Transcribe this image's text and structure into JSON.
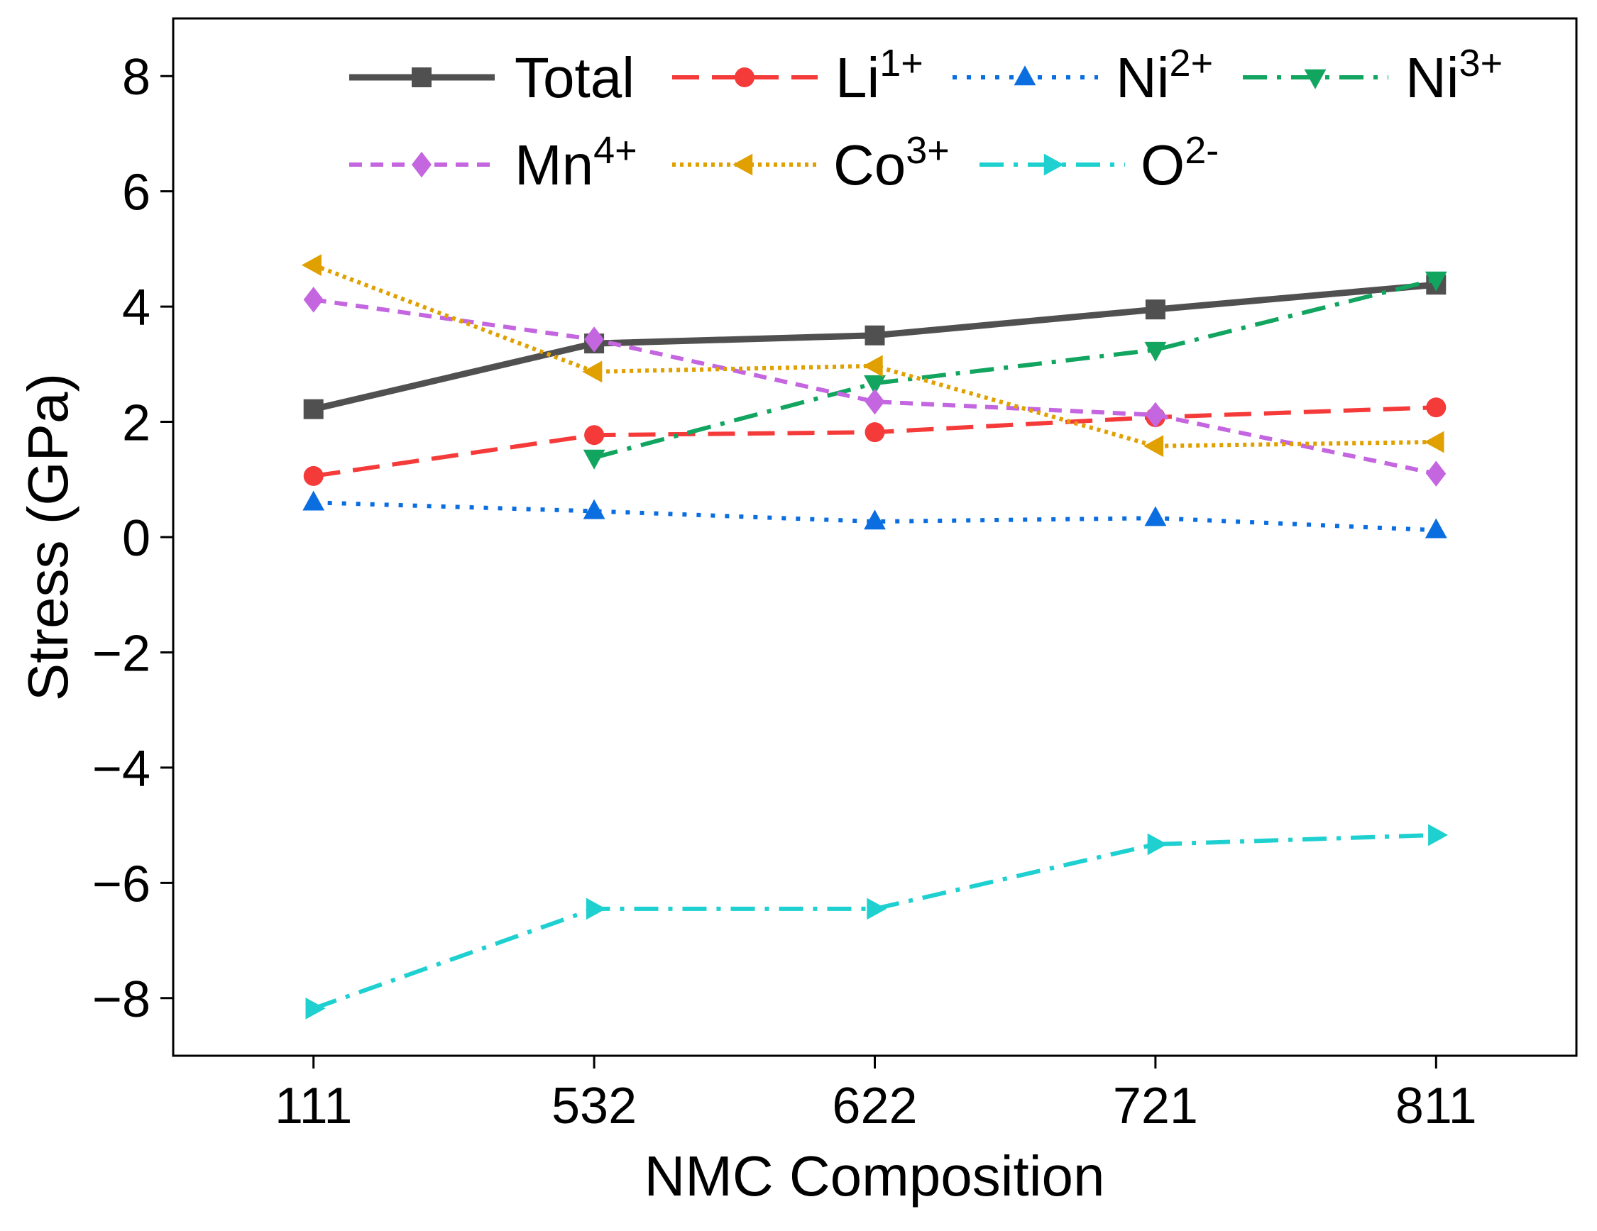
{
  "chart_data": {
    "type": "line",
    "title": "",
    "xlabel": "NMC Composition",
    "ylabel": "Stress (GPa)",
    "categories": [
      "111",
      "532",
      "622",
      "721",
      "811"
    ],
    "ylim": [
      -9,
      9
    ],
    "yticks": [
      -8,
      -6,
      -4,
      -2,
      0,
      2,
      4,
      6,
      8
    ],
    "grid": false,
    "legend_placement": "top",
    "series": [
      {
        "name": "Total",
        "sup": "",
        "color": "#505050",
        "marker": "square",
        "dash": "solid",
        "values": [
          2.22,
          3.36,
          3.5,
          3.95,
          4.38
        ]
      },
      {
        "name": "Li",
        "sup": "1+",
        "color": "#f53a3a",
        "marker": "circle",
        "dash": "dash",
        "values": [
          1.06,
          1.77,
          1.82,
          2.08,
          2.25
        ]
      },
      {
        "name": "Ni",
        "sup": "2+",
        "color": "#0a6ee0",
        "marker": "triangle-up",
        "dash": "dot",
        "values": [
          0.6,
          0.45,
          0.27,
          0.33,
          0.12
        ]
      },
      {
        "name": "Ni",
        "sup": "3+",
        "color": "#11a560",
        "marker": "triangle-down",
        "dash": "dashdot",
        "values": [
          null,
          1.38,
          2.67,
          3.25,
          4.47
        ]
      },
      {
        "name": "Mn",
        "sup": "4+",
        "color": "#c466e0",
        "marker": "diamond",
        "dash": "shortdash",
        "values": [
          4.12,
          3.43,
          2.35,
          2.12,
          1.1
        ]
      },
      {
        "name": "Co",
        "sup": "3+",
        "color": "#e0a000",
        "marker": "triangle-left",
        "dash": "shortdot",
        "values": [
          4.72,
          2.87,
          2.97,
          1.58,
          1.65
        ]
      },
      {
        "name": "O",
        "sup": "2-",
        "color": "#1fd0d0",
        "marker": "triangle-right",
        "dash": "dashdot",
        "values": [
          -8.18,
          -6.45,
          -6.45,
          -5.33,
          -5.17
        ]
      }
    ]
  }
}
